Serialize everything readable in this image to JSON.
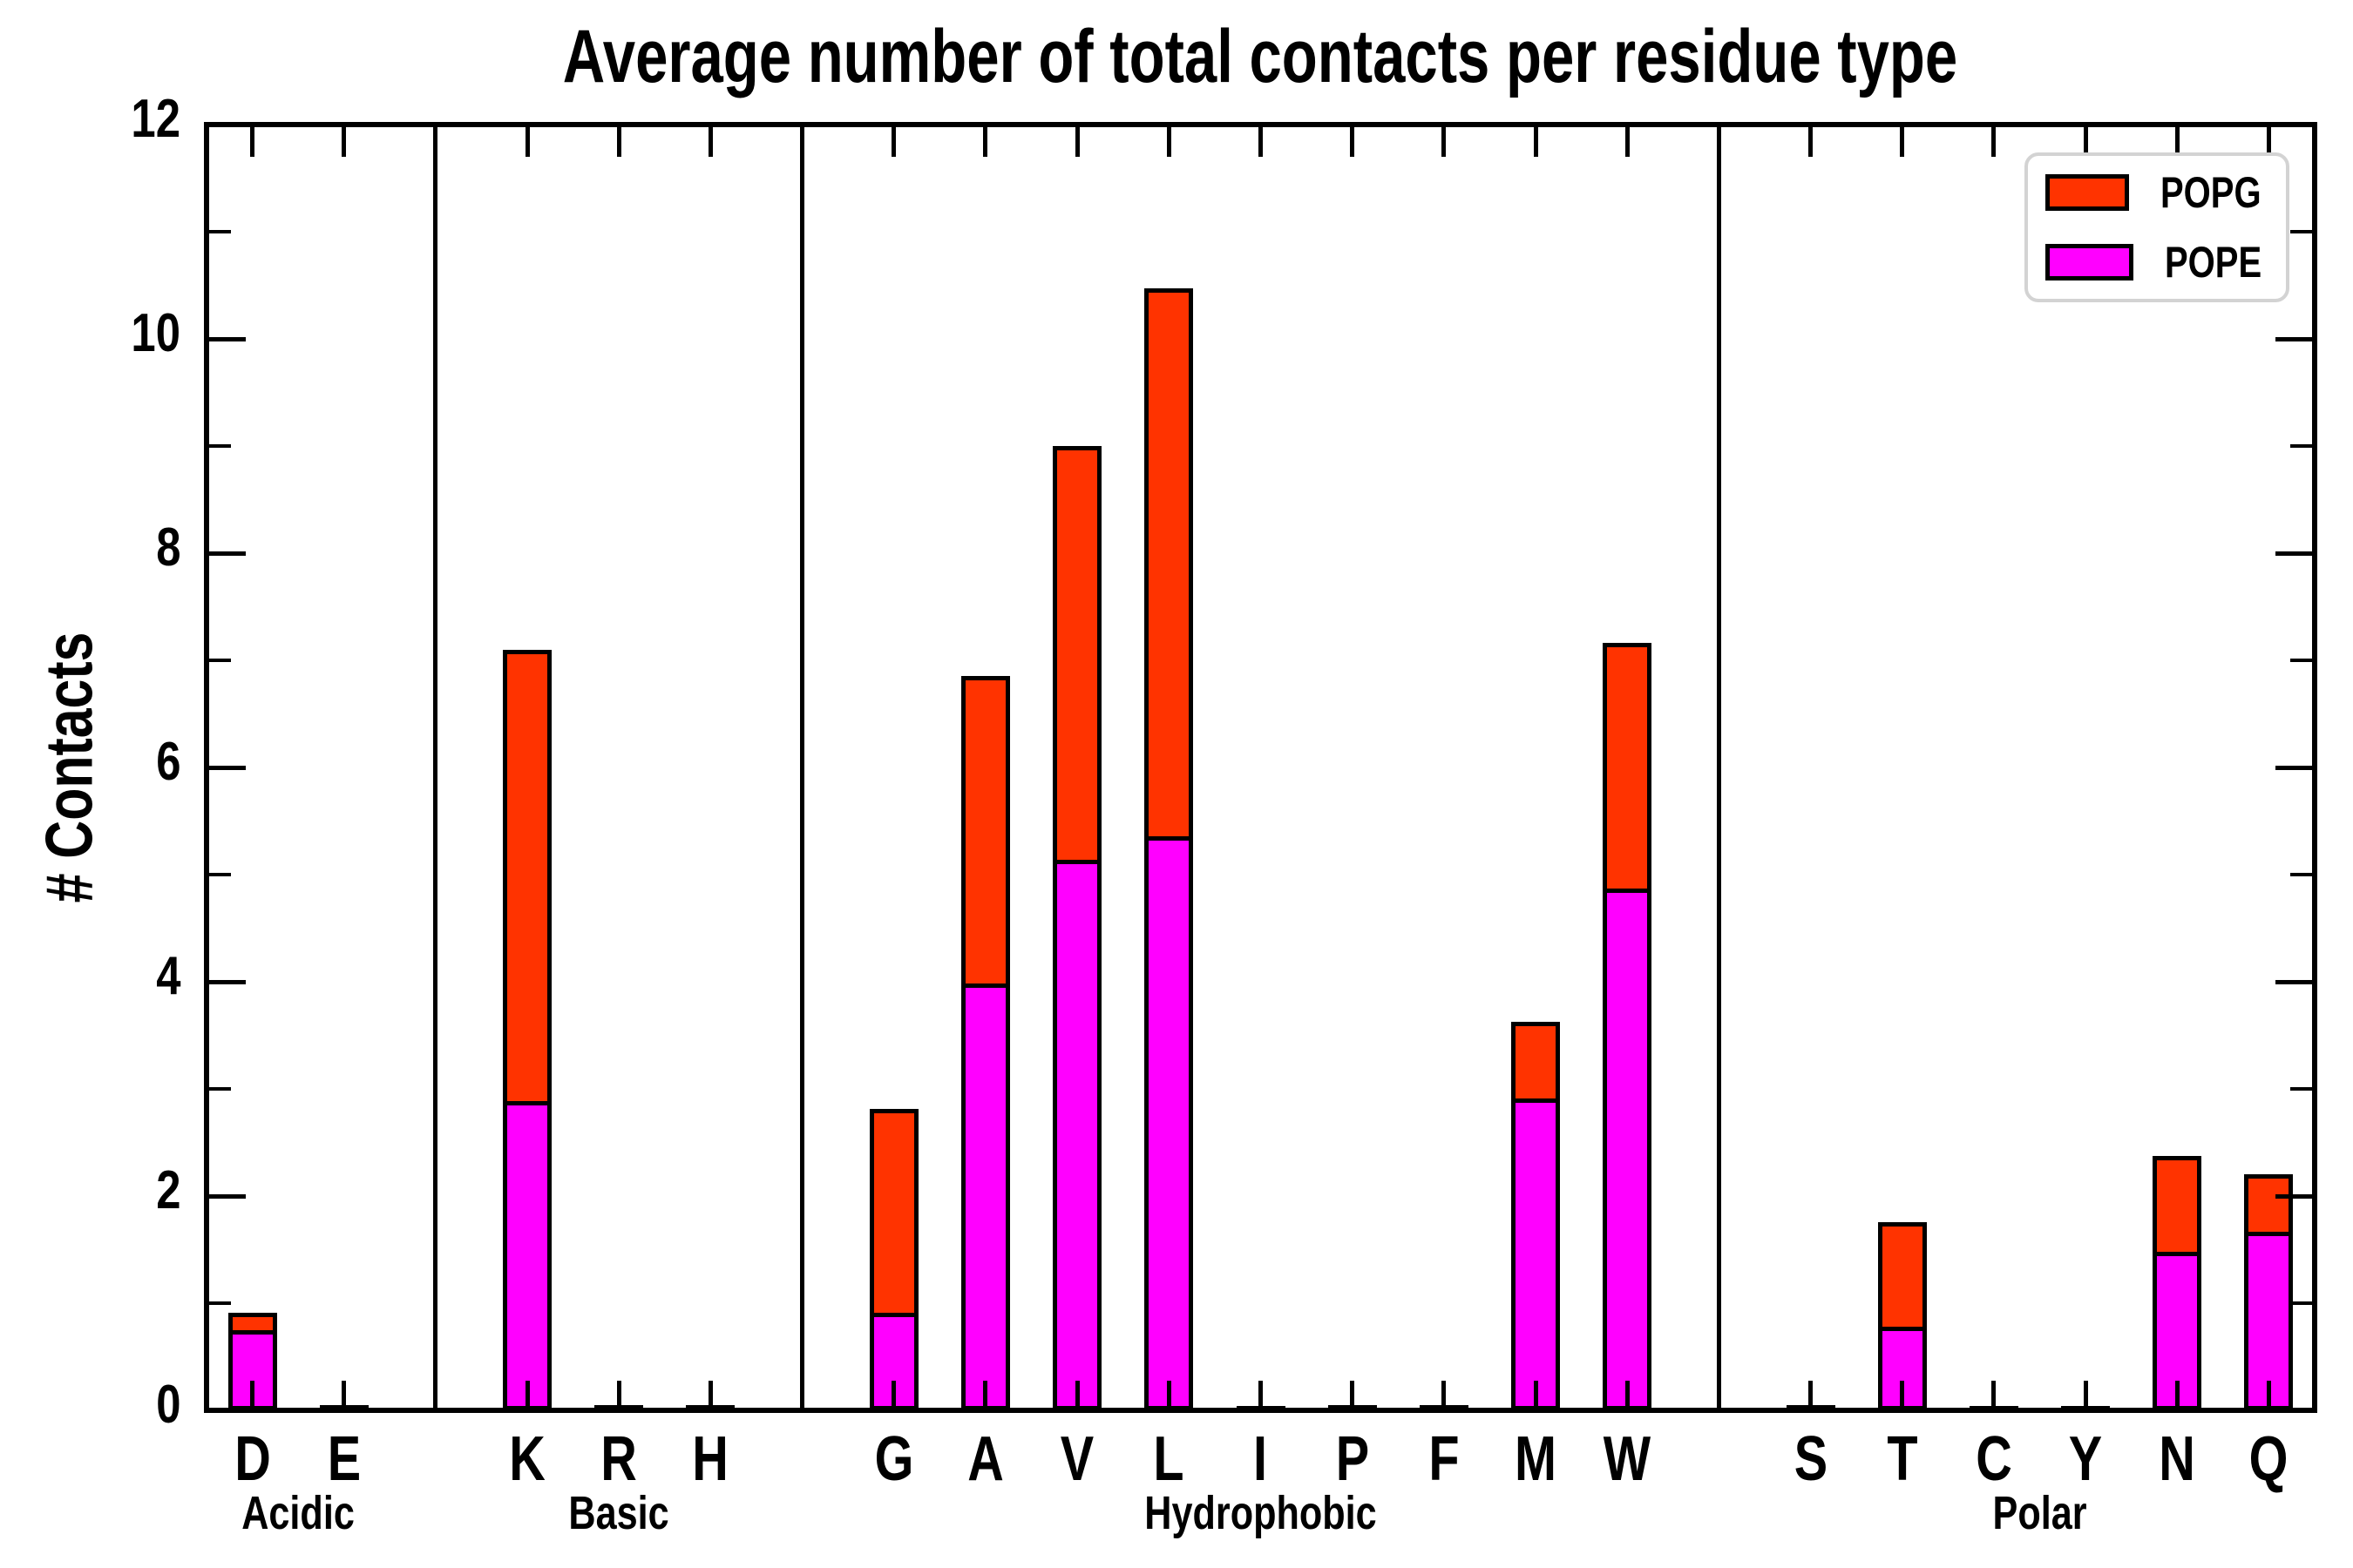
{
  "chart_data": {
    "type": "bar",
    "stacked": true,
    "title": "Average number of total contacts per residue type",
    "ylabel": "# Contacts",
    "xlabel": "",
    "ylim": [
      0,
      12
    ],
    "yticks_major": [
      0,
      2,
      4,
      6,
      8,
      10,
      12
    ],
    "yticks_minor": [
      1,
      3,
      5,
      7,
      9,
      11
    ],
    "grid": false,
    "legend_position": "upper right",
    "groups": [
      {
        "label": "Acidic",
        "residues": [
          "D",
          "E"
        ]
      },
      {
        "label": "Basic",
        "residues": [
          "K",
          "R",
          "H"
        ]
      },
      {
        "label": "Hydrophobic",
        "residues": [
          "G",
          "A",
          "V",
          "L",
          "I",
          "P",
          "F",
          "M",
          "W"
        ]
      },
      {
        "label": "Polar",
        "residues": [
          "S",
          "T",
          "C",
          "Y",
          "N",
          "Q"
        ]
      }
    ],
    "categories": [
      "D",
      "E",
      "K",
      "R",
      "H",
      "G",
      "A",
      "V",
      "L",
      "I",
      "P",
      "F",
      "M",
      "W",
      "S",
      "T",
      "C",
      "Y",
      "N",
      "Q"
    ],
    "series": [
      {
        "name": "POPG",
        "color": "#ff3300",
        "stack_order": "top",
        "values": [
          0.16,
          0.01,
          4.21,
          0.01,
          0.01,
          1.9,
          2.87,
          3.86,
          5.11,
          0.005,
          0.01,
          0.01,
          0.72,
          2.29,
          0.01,
          0.98,
          0.005,
          0.005,
          0.89,
          0.53
        ]
      },
      {
        "name": "POPE",
        "color": "#ff00ff",
        "stack_order": "bottom",
        "values": [
          0.75,
          0.01,
          2.89,
          0.01,
          0.01,
          0.91,
          3.98,
          5.14,
          5.36,
          0.005,
          0.01,
          0.01,
          2.91,
          4.87,
          0.01,
          0.78,
          0.005,
          0.005,
          1.48,
          1.67
        ]
      }
    ],
    "totals": [
      0.91,
      0.02,
      7.1,
      0.02,
      0.02,
      2.81,
      6.85,
      9.0,
      10.47,
      0.01,
      0.02,
      0.02,
      3.63,
      7.16,
      0.02,
      1.76,
      0.01,
      0.01,
      2.37,
      2.2
    ]
  },
  "legend": {
    "items": [
      {
        "label": "POPG",
        "color": "#ff3300"
      },
      {
        "label": "POPE",
        "color": "#ff00ff"
      }
    ]
  },
  "colors": {
    "popg": "#ff3300",
    "pope": "#ff00ff",
    "axis": "#000000",
    "background": "#ffffff",
    "legend_border": "#d3d3d3"
  }
}
